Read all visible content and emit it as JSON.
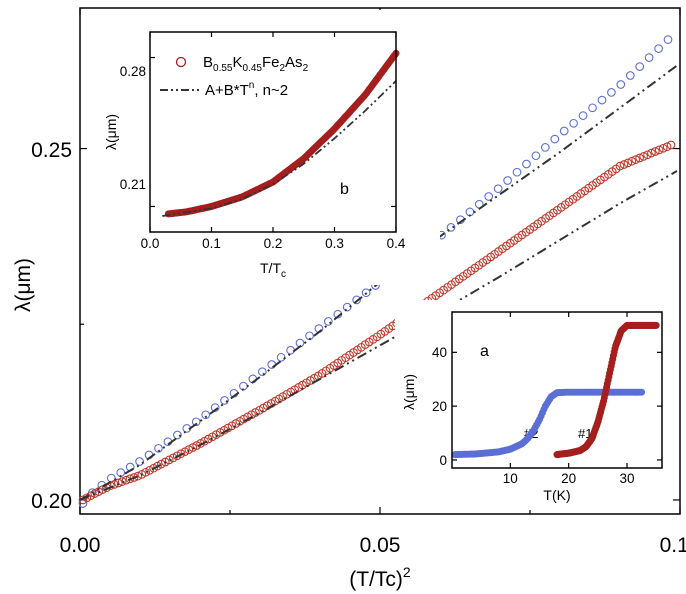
{
  "chart_data": [
    {
      "panel": "main",
      "type": "scatter",
      "xlabel": "(T/Tc)",
      "xlabel_sup": "2",
      "ylabel": "λ(μm)",
      "xlim": [
        0,
        0.1
      ],
      "ylim": [
        0.198,
        0.27
      ],
      "x_ticks": [
        "0.00",
        "0.05",
        "0.10"
      ],
      "y_ticks": [
        "0.20",
        "0.25"
      ],
      "colors": {
        "blue": "#5b6fd6",
        "red": "#c0392b",
        "fit": "#333333"
      },
      "series": [
        {
          "color": "blue",
          "marker": "open-circle",
          "x": [
            0.0005,
            0.002,
            0.005,
            0.01,
            0.02,
            0.03,
            0.04,
            0.05,
            0.06,
            0.07,
            0.08,
            0.09,
            0.098
          ],
          "y": [
            0.1995,
            0.201,
            0.203,
            0.2055,
            0.2115,
            0.218,
            0.2245,
            0.231,
            0.2375,
            0.2445,
            0.252,
            0.259,
            0.2655
          ]
        },
        {
          "color": "red",
          "marker": "open-circle",
          "x": [
            0.0005,
            0.002,
            0.005,
            0.01,
            0.02,
            0.03,
            0.04,
            0.05,
            0.06,
            0.07,
            0.08,
            0.09,
            0.0985
          ],
          "y": [
            0.2,
            0.2007,
            0.202,
            0.2035,
            0.208,
            0.2128,
            0.2178,
            0.2235,
            0.2295,
            0.2355,
            0.2415,
            0.2475,
            0.2505
          ]
        },
        {
          "color": "fit",
          "line": "dash-dot-dot",
          "x": [
            0,
            0.01,
            0.02,
            0.03,
            0.04,
            0.05,
            0.06,
            0.07,
            0.08,
            0.09,
            0.0995
          ],
          "y": [
            0.2,
            0.205,
            0.2112,
            0.2175,
            0.224,
            0.231,
            0.2375,
            0.2435,
            0.2495,
            0.2558,
            0.2618
          ]
        },
        {
          "color": "fit",
          "line": "dash-dot-dot",
          "x": [
            0,
            0.01,
            0.02,
            0.03,
            0.04,
            0.05,
            0.06,
            0.07,
            0.08,
            0.09,
            0.0995
          ],
          "y": [
            0.2,
            0.2035,
            0.2078,
            0.2124,
            0.2172,
            0.222,
            0.2268,
            0.2318,
            0.237,
            0.2422,
            0.2468
          ]
        }
      ]
    },
    {
      "panel": "inset-b",
      "type": "scatter",
      "annotation": "b",
      "xlabel": "T/T",
      "xlabel_sub": "c",
      "ylabel": "λ(μm)",
      "xlim": [
        0,
        0.4
      ],
      "ylim": [
        0.198,
        0.292
      ],
      "x_ticks": [
        "0.0",
        "0.1",
        "0.2",
        "0.3",
        "0.4"
      ],
      "y_ticks": [
        "0.21",
        "0.28"
      ],
      "legend": [
        {
          "marker": "open-circle",
          "color": "red",
          "label": "B0.55K0.45Fe2As2"
        },
        {
          "line": "dash-dot-dot",
          "color": "fit",
          "label": "A+B*Tn, n~2"
        }
      ],
      "series": [
        {
          "color": "red",
          "marker": "filled-circle",
          "x": [
            0.03,
            0.06,
            0.1,
            0.15,
            0.2,
            0.25,
            0.3,
            0.35,
            0.4
          ],
          "y": [
            0.2065,
            0.2075,
            0.21,
            0.2145,
            0.2215,
            0.2325,
            0.2465,
            0.2625,
            0.282
          ]
        },
        {
          "color": "fit",
          "line": "dash-dot-dot",
          "x": [
            0.02,
            0.1,
            0.15,
            0.2,
            0.25,
            0.3,
            0.35,
            0.4
          ],
          "y": [
            0.2055,
            0.209,
            0.2135,
            0.2205,
            0.23,
            0.242,
            0.255,
            0.269
          ]
        }
      ]
    },
    {
      "panel": "inset-a",
      "type": "scatter",
      "annotation": "a",
      "xlabel": "T(K)",
      "ylabel": "λ(μm)",
      "xlim": [
        0,
        36
      ],
      "ylim": [
        -3,
        55
      ],
      "x_ticks": [
        "10",
        "20",
        "30"
      ],
      "y_ticks": [
        "0",
        "20",
        "40"
      ],
      "series": [
        {
          "name": "#2",
          "color": "blue",
          "marker": "filled-circle",
          "x": [
            0.5,
            4,
            8,
            10,
            12,
            13,
            14,
            15,
            16,
            17,
            18,
            20,
            25,
            30,
            32.5
          ],
          "y": [
            2,
            2.2,
            3,
            4,
            6,
            8,
            11,
            15,
            20,
            23.5,
            25,
            25.2,
            25.2,
            25.2,
            25.2
          ]
        },
        {
          "name": "#1",
          "color": "red",
          "marker": "filled-circle",
          "x": [
            18,
            20,
            22,
            23,
            24,
            25,
            26,
            27,
            28,
            29,
            30,
            32,
            35
          ],
          "y": [
            2,
            2.5,
            3.5,
            5,
            8,
            14,
            22,
            32,
            42,
            48,
            50,
            50,
            50
          ]
        }
      ]
    }
  ]
}
